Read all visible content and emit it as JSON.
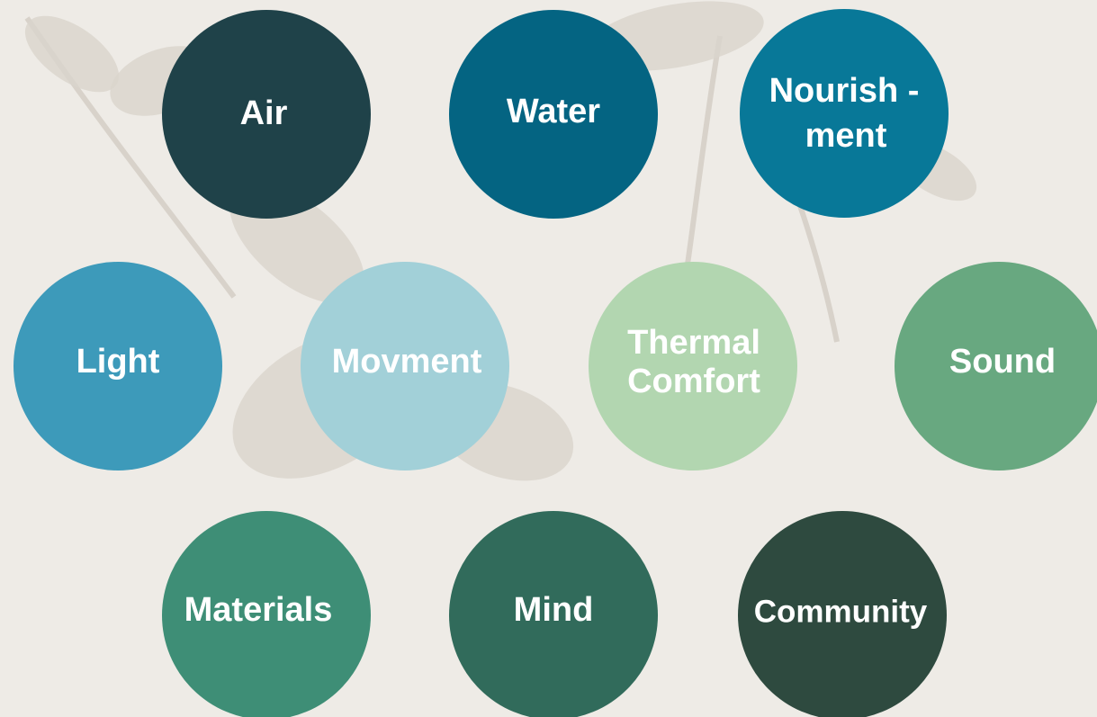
{
  "nodes": [
    {
      "label": [
        "Air"
      ]
    },
    {
      "label": [
        "Water"
      ]
    },
    {
      "label": [
        "Nourish -",
        "ment"
      ]
    },
    {
      "label": [
        "Light"
      ]
    },
    {
      "label": [
        "Movment"
      ]
    },
    {
      "label": [
        "Thermal",
        "Comfort"
      ]
    },
    {
      "label": [
        "Sound"
      ]
    },
    {
      "label": [
        "Materials"
      ]
    },
    {
      "label": [
        "Mind"
      ]
    },
    {
      "label": [
        "Community"
      ]
    }
  ]
}
